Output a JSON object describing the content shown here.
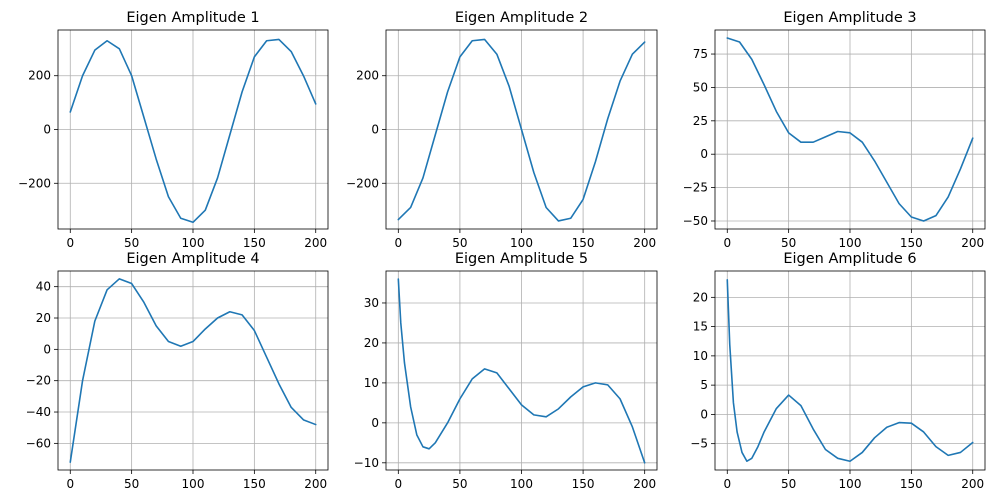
{
  "style": {
    "line_color": "#1f77b4",
    "grid_color": "#b0b0b0",
    "background": "#ffffff"
  },
  "chart_data": [
    {
      "type": "line",
      "title": "Eigen Amplitude 1",
      "xlabel": "",
      "ylabel": "",
      "xlim": [
        -10,
        210
      ],
      "ylim": [
        -370,
        370
      ],
      "xticks": [
        0,
        50,
        100,
        150,
        200
      ],
      "yticks": [
        -200,
        0,
        200
      ],
      "ytick_labels": [
        "−200",
        "0",
        "200"
      ],
      "grid": true,
      "series": [
        {
          "x": [
            0,
            10,
            20,
            30,
            40,
            50,
            60,
            70,
            80,
            90,
            100,
            110,
            120,
            130,
            140,
            150,
            160,
            170,
            180,
            190,
            200
          ],
          "y": [
            65,
            200,
            295,
            330,
            300,
            200,
            45,
            -110,
            -250,
            -330,
            -345,
            -300,
            -180,
            -20,
            140,
            270,
            330,
            335,
            290,
            200,
            95
          ]
        }
      ]
    },
    {
      "type": "line",
      "title": "Eigen Amplitude 2",
      "xlabel": "",
      "ylabel": "",
      "xlim": [
        -10,
        210
      ],
      "ylim": [
        -370,
        370
      ],
      "xticks": [
        0,
        50,
        100,
        150,
        200
      ],
      "yticks": [
        -200,
        0,
        200
      ],
      "ytick_labels": [
        "−200",
        "0",
        "200"
      ],
      "grid": true,
      "series": [
        {
          "x": [
            0,
            10,
            20,
            30,
            40,
            50,
            60,
            70,
            80,
            90,
            100,
            110,
            120,
            130,
            140,
            150,
            160,
            170,
            180,
            190,
            200
          ],
          "y": [
            -335,
            -290,
            -180,
            -20,
            140,
            270,
            330,
            335,
            280,
            160,
            0,
            -160,
            -290,
            -340,
            -330,
            -260,
            -120,
            40,
            180,
            280,
            325
          ]
        }
      ]
    },
    {
      "type": "line",
      "title": "Eigen Amplitude 3",
      "xlabel": "",
      "ylabel": "",
      "xlim": [
        -10,
        210
      ],
      "ylim": [
        -56,
        93
      ],
      "xticks": [
        0,
        50,
        100,
        150,
        200
      ],
      "yticks": [
        -50,
        -25,
        0,
        25,
        50,
        75
      ],
      "ytick_labels": [
        "−50",
        "−25",
        "0",
        "25",
        "50",
        "75"
      ],
      "grid": true,
      "series": [
        {
          "x": [
            0,
            10,
            20,
            30,
            40,
            50,
            60,
            70,
            80,
            90,
            100,
            110,
            120,
            130,
            140,
            150,
            160,
            170,
            180,
            190,
            200
          ],
          "y": [
            87,
            84,
            71,
            52,
            32,
            16,
            9,
            9,
            13,
            17,
            16,
            9,
            -5,
            -21,
            -37,
            -47,
            -50,
            -46,
            -32,
            -11,
            12
          ]
        }
      ]
    },
    {
      "type": "line",
      "title": "Eigen Amplitude 4",
      "xlabel": "",
      "ylabel": "",
      "xlim": [
        -10,
        210
      ],
      "ylim": [
        -77,
        50
      ],
      "xticks": [
        0,
        50,
        100,
        150,
        200
      ],
      "yticks": [
        -60,
        -40,
        -20,
        0,
        20,
        40
      ],
      "ytick_labels": [
        "−60",
        "−40",
        "−20",
        "0",
        "20",
        "40"
      ],
      "grid": true,
      "series": [
        {
          "x": [
            0,
            10,
            20,
            30,
            40,
            50,
            60,
            70,
            80,
            90,
            100,
            110,
            120,
            130,
            140,
            150,
            160,
            170,
            180,
            190,
            200
          ],
          "y": [
            -72,
            -20,
            18,
            38,
            45,
            42,
            30,
            15,
            5,
            2,
            5,
            13,
            20,
            24,
            22,
            12,
            -5,
            -22,
            -37,
            -45,
            -48
          ]
        }
      ]
    },
    {
      "type": "line",
      "title": "Eigen Amplitude 5",
      "xlabel": "",
      "ylabel": "",
      "xlim": [
        -10,
        210
      ],
      "ylim": [
        -11.8,
        38
      ],
      "xticks": [
        0,
        50,
        100,
        150,
        200
      ],
      "yticks": [
        -10,
        0,
        10,
        20,
        30
      ],
      "ytick_labels": [
        "−10",
        "0",
        "10",
        "20",
        "30"
      ],
      "grid": true,
      "series": [
        {
          "x": [
            0,
            2,
            5,
            10,
            15,
            20,
            25,
            30,
            40,
            50,
            60,
            70,
            80,
            90,
            100,
            110,
            120,
            130,
            140,
            150,
            160,
            170,
            180,
            190,
            200
          ],
          "y": [
            36,
            25,
            15,
            4,
            -3,
            -6,
            -6.5,
            -5,
            0,
            6,
            11,
            13.5,
            12.5,
            8.5,
            4.5,
            2,
            1.5,
            3.5,
            6.5,
            9,
            10,
            9.5,
            6,
            -1,
            -10
          ]
        }
      ]
    },
    {
      "type": "line",
      "title": "Eigen Amplitude 6",
      "xlabel": "",
      "ylabel": "",
      "xlim": [
        -10,
        210
      ],
      "ylim": [
        -9.5,
        24.5
      ],
      "xticks": [
        0,
        50,
        100,
        150,
        200
      ],
      "yticks": [
        -5,
        0,
        5,
        10,
        15,
        20
      ],
      "ytick_labels": [
        "−5",
        "0",
        "5",
        "10",
        "15",
        "20"
      ],
      "grid": true,
      "series": [
        {
          "x": [
            0,
            2,
            5,
            8,
            12,
            16,
            20,
            25,
            30,
            40,
            50,
            60,
            70,
            80,
            90,
            100,
            110,
            120,
            130,
            140,
            150,
            160,
            170,
            180,
            190,
            200
          ],
          "y": [
            23,
            12,
            2,
            -3,
            -6.5,
            -8,
            -7.5,
            -5.5,
            -3,
            1,
            3.3,
            1.5,
            -2.5,
            -6,
            -7.5,
            -8,
            -6.5,
            -4,
            -2.2,
            -1.4,
            -1.5,
            -3,
            -5.5,
            -7,
            -6.5,
            -4.8
          ]
        }
      ]
    }
  ]
}
